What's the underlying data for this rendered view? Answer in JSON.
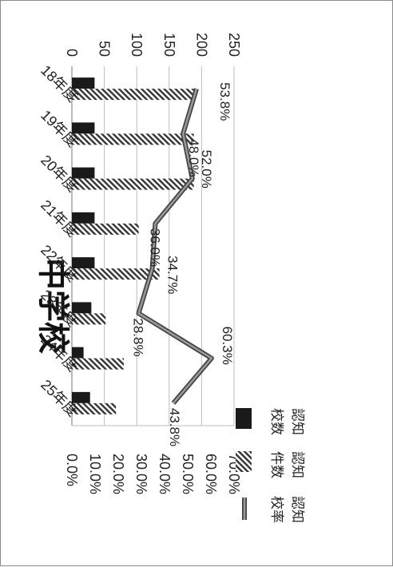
{
  "chart_data": {
    "type": "bar",
    "title": "中学校",
    "categories": [
      "18年度",
      "19年度",
      "20年度",
      "21年度",
      "22年度",
      "23年度",
      "24年度",
      "25年度"
    ],
    "series": [
      {
        "name": "認知校数",
        "type": "bar",
        "axis": "left",
        "color": "#1a1a1a",
        "pattern": "solid",
        "values": [
          35,
          35,
          35,
          35,
          35,
          30,
          18,
          28
        ]
      },
      {
        "name": "認知件数",
        "type": "bar",
        "axis": "left",
        "color": "#3a3a3a",
        "pattern": "hatched",
        "values": [
          188,
          188,
          188,
          103,
          135,
          52,
          80,
          68
        ]
      },
      {
        "name": "認知校率",
        "type": "line",
        "axis": "right",
        "color": "#555555",
        "values": [
          53.8,
          48.0,
          52.0,
          36.0,
          34.7,
          28.8,
          60.3,
          43.8
        ],
        "labels": [
          "53.8%",
          "48.0%",
          "52.0%",
          "36.0%",
          "34.7%",
          "28.8%",
          "60.3%",
          "43.8%"
        ]
      }
    ],
    "left_axis": {
      "min": 0,
      "max": 250,
      "ticks": [
        "0",
        "50",
        "100",
        "150",
        "200",
        "250"
      ]
    },
    "right_axis": {
      "min": 0,
      "max": 70,
      "ticks": [
        "0.0%",
        "10.0%",
        "20.0%",
        "30.0%",
        "40.0%",
        "50.0%",
        "60.0%",
        "70.0%"
      ]
    },
    "orientation": "rotated 90 degrees clockwise",
    "grid": true,
    "legend_position": "top-right"
  }
}
